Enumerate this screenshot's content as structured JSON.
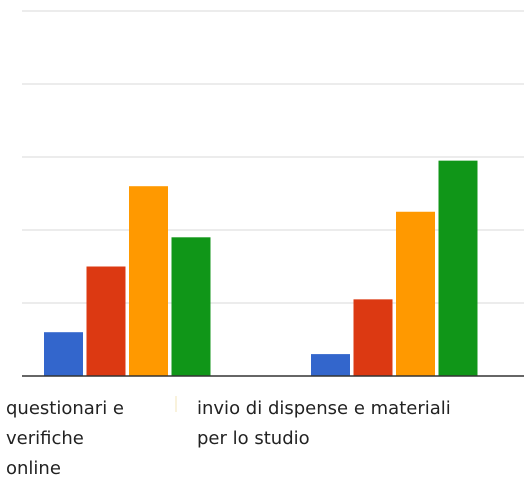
{
  "chart_data": {
    "type": "bar",
    "title": "",
    "xlabel": "",
    "ylabel": "",
    "categories": [
      [
        "questionari e",
        "verifiche",
        "online"
      ],
      [
        "invio di dispense e materiali",
        "per lo studio"
      ]
    ],
    "series": [
      {
        "color": "#3366cc",
        "values": [
          0.6,
          0.3
        ]
      },
      {
        "color": "#dc3912",
        "values": [
          1.5,
          1.05
        ]
      },
      {
        "color": "#ff9900",
        "values": [
          2.6,
          2.25
        ]
      },
      {
        "color": "#109618",
        "values": [
          1.9,
          2.95
        ]
      }
    ],
    "ylim": [
      0,
      5
    ],
    "gridlines": 5,
    "grid": true,
    "legend": "none"
  }
}
